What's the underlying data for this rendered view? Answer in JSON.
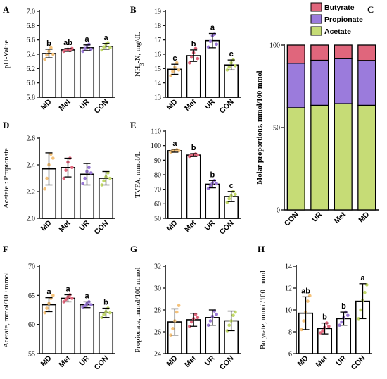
{
  "colors": {
    "MD": "#f5c27a",
    "Met": "#e0667c",
    "UR": "#9a79d6",
    "CON": "#c2d96a",
    "acetate": "#c6dc76",
    "propionate": "#9b7bdc",
    "butyrate": "#e0667c"
  },
  "chart_data": [
    {
      "id": "A",
      "type": "bar",
      "letter": "A",
      "ylabel": "pH-Value",
      "categories": [
        "MD",
        "Met",
        "UR",
        "CON"
      ],
      "values": [
        6.41,
        6.46,
        6.49,
        6.51
      ],
      "errors": [
        0.06,
        0.02,
        0.04,
        0.04
      ],
      "sig": [
        "b",
        "ab",
        "a",
        "a"
      ],
      "ylim": [
        5.8,
        7.0
      ],
      "yticks": [
        5.8,
        6.0,
        6.2,
        6.4,
        6.6,
        6.8,
        7.0
      ],
      "points": [
        [
          6.33,
          6.39,
          6.44,
          6.49,
          6.4
        ],
        [
          6.44,
          6.46,
          6.47,
          6.45,
          6.48
        ],
        [
          6.44,
          6.48,
          6.52,
          6.54,
          6.47
        ],
        [
          6.46,
          6.5,
          6.54,
          6.56,
          6.49
        ]
      ]
    },
    {
      "id": "B",
      "type": "bar",
      "letter": "B",
      "ylabel": "NH3-N, mg/dL",
      "ylabel_main": "NH",
      "ylabel_sub": "3",
      "ylabel_rest": "-N, mg/dL",
      "categories": [
        "MD",
        "Met",
        "UR",
        "CON"
      ],
      "values": [
        14.95,
        15.9,
        16.95,
        15.25
      ],
      "errors": [
        0.35,
        0.4,
        0.5,
        0.35
      ],
      "sig": [
        "c",
        "b",
        "a",
        "c"
      ],
      "ylim": [
        13,
        19
      ],
      "yticks": [
        13,
        14,
        15,
        16,
        17,
        18,
        19
      ],
      "points": [
        [
          14.5,
          14.8,
          15.1,
          15.4,
          14.9
        ],
        [
          15.4,
          15.8,
          16.1,
          16.4,
          15.7
        ],
        [
          16.5,
          16.9,
          17.3,
          17.4,
          16.7
        ],
        [
          14.9,
          15.1,
          15.4,
          15.6,
          15.2
        ]
      ]
    },
    {
      "id": "C",
      "type": "stacked-bar",
      "letter": "C",
      "ylabel": "Molar proportions, mmol/100 mmol",
      "categories": [
        "CON",
        "UR",
        "Met",
        "MD"
      ],
      "series": [
        {
          "name": "Acetate",
          "values": [
            62,
            63.5,
            64.5,
            63.5
          ]
        },
        {
          "name": "Propionate",
          "values": [
            27,
            27.3,
            27.3,
            27.2
          ]
        },
        {
          "name": "Butyrate",
          "values": [
            11,
            9.2,
            8.2,
            9.3
          ]
        }
      ],
      "legend_order": [
        "Butyrate",
        "Propionate",
        "Acetate"
      ],
      "ylim": [
        0,
        100
      ],
      "yticks": [
        0,
        50,
        100
      ],
      "legend_position": "top"
    },
    {
      "id": "D",
      "type": "bar",
      "letter": "D",
      "ylabel": "Acetate : Propionate",
      "categories": [
        "MD",
        "Met",
        "UR",
        "CON"
      ],
      "values": [
        2.37,
        2.38,
        2.33,
        2.3
      ],
      "errors": [
        0.12,
        0.07,
        0.08,
        0.05
      ],
      "sig": [
        "",
        "",
        "",
        ""
      ],
      "ylim": [
        2.0,
        2.6
      ],
      "yticks": [
        2.0,
        2.2,
        2.4,
        2.6
      ],
      "points": [
        [
          2.22,
          2.3,
          2.4,
          2.48,
          2.45
        ],
        [
          2.3,
          2.36,
          2.42,
          2.45,
          2.38
        ],
        [
          2.26,
          2.3,
          2.35,
          2.38,
          2.34
        ],
        [
          2.25,
          2.28,
          2.31,
          2.34,
          2.3
        ]
      ]
    },
    {
      "id": "E",
      "type": "bar",
      "letter": "E",
      "ylabel": "TVFA, mmol/L",
      "categories": [
        "MD",
        "Met",
        "UR",
        "CON"
      ],
      "values": [
        96.5,
        93.5,
        73.5,
        65.0
      ],
      "errors": [
        1.0,
        1.0,
        2.5,
        3.5
      ],
      "sig": [
        "a",
        "b",
        "b",
        "c"
      ],
      "ylim": [
        50,
        110
      ],
      "yticks": [
        50,
        60,
        70,
        80,
        90,
        100,
        110
      ],
      "points": [
        [
          95.6,
          96.2,
          96.8,
          97.2,
          96.5
        ],
        [
          92.6,
          93.2,
          93.9,
          94.3,
          93.5
        ],
        [
          70.5,
          72.5,
          74.2,
          76.0,
          73.8
        ],
        [
          61.0,
          63.5,
          65.5,
          68.5,
          66.5
        ]
      ]
    },
    {
      "id": "F",
      "type": "bar",
      "letter": "F",
      "ylabel": "Acetate, mmol/100 mmol",
      "categories": [
        "MD",
        "Met",
        "UR",
        "CON"
      ],
      "values": [
        63.4,
        64.5,
        63.4,
        62.0
      ],
      "errors": [
        1.2,
        0.6,
        0.5,
        0.8
      ],
      "sig": [
        "a",
        "a",
        "a",
        "b"
      ],
      "ylim": [
        55,
        70
      ],
      "yticks": [
        55,
        60,
        65,
        70
      ],
      "points": [
        [
          62.0,
          62.8,
          63.6,
          64.5,
          65.0
        ],
        [
          63.9,
          64.3,
          64.7,
          65.1,
          64.5
        ],
        [
          63.0,
          63.2,
          63.6,
          63.9,
          63.4
        ],
        [
          61.2,
          61.7,
          62.2,
          62.8,
          62.0
        ]
      ]
    },
    {
      "id": "G",
      "type": "bar",
      "letter": "G",
      "ylabel": "Propionate, mmol/100 mmol",
      "categories": [
        "MD",
        "Met",
        "UR",
        "CON"
      ],
      "values": [
        26.9,
        27.1,
        27.3,
        27.0
      ],
      "errors": [
        1.2,
        0.6,
        0.7,
        0.9
      ],
      "sig": [
        "",
        "",
        "",
        ""
      ],
      "ylim": [
        24,
        32
      ],
      "yticks": [
        24,
        26,
        28,
        30,
        32
      ],
      "points": [
        [
          25.7,
          26.3,
          27.0,
          27.8,
          28.4
        ],
        [
          26.5,
          26.9,
          27.2,
          27.6,
          27.3
        ],
        [
          26.6,
          27.0,
          27.4,
          27.9,
          27.6
        ],
        [
          26.1,
          26.6,
          27.0,
          27.5,
          27.8
        ]
      ]
    },
    {
      "id": "H",
      "type": "bar",
      "letter": "H",
      "ylabel": "Butyrate, mmol/100 mmol",
      "categories": [
        "MD",
        "Met",
        "UR",
        "CON"
      ],
      "values": [
        9.7,
        8.3,
        9.2,
        10.8
      ],
      "errors": [
        1.5,
        0.5,
        0.6,
        1.6
      ],
      "sig": [
        "ab",
        "b",
        "b",
        "a"
      ],
      "ylim": [
        6,
        14
      ],
      "yticks": [
        6,
        8,
        10,
        12,
        14
      ],
      "points": [
        [
          8.2,
          9.0,
          9.8,
          10.8,
          11.3
        ],
        [
          7.9,
          8.1,
          8.4,
          8.8,
          8.5
        ],
        [
          8.6,
          8.9,
          9.3,
          9.8,
          9.5
        ],
        [
          9.2,
          10.0,
          10.9,
          11.6,
          12.3
        ]
      ]
    }
  ]
}
